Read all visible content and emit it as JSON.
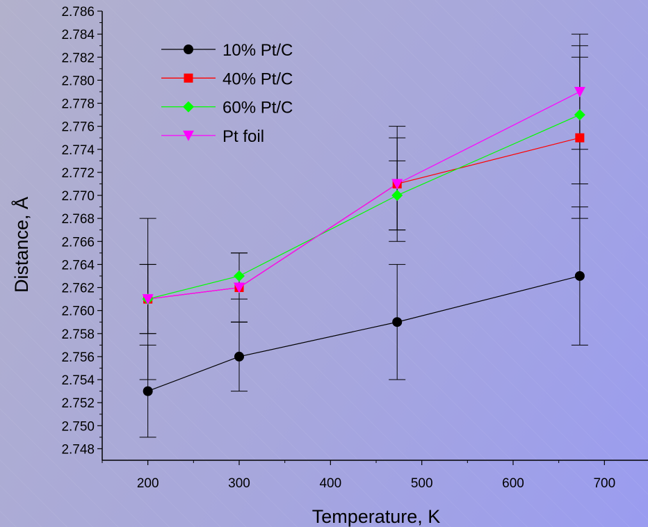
{
  "chart_data": {
    "type": "line",
    "xlabel": "Temperature, K",
    "ylabel": "Distance, Å",
    "xlim": [
      150,
      750
    ],
    "ylim": [
      2.747,
      2.786
    ],
    "x_ticks": [
      200,
      300,
      400,
      500,
      600,
      700
    ],
    "y_ticks": [
      2.748,
      2.75,
      2.752,
      2.754,
      2.756,
      2.758,
      2.76,
      2.762,
      2.764,
      2.766,
      2.768,
      2.77,
      2.772,
      2.774,
      2.776,
      2.778,
      2.78,
      2.782,
      2.784,
      2.786
    ],
    "legend_position": "top-left",
    "grid": false,
    "series": [
      {
        "name": "10% Pt/C",
        "color": "#000000",
        "marker": "circle",
        "x": [
          200,
          300,
          473,
          673
        ],
        "y": [
          2.753,
          2.756,
          2.759,
          2.763
        ],
        "error": [
          0.004,
          0.003,
          0.005,
          0.006
        ]
      },
      {
        "name": "40% Pt/C",
        "color": "#ff0000",
        "marker": "square",
        "x": [
          200,
          300,
          473,
          673
        ],
        "y": [
          2.761,
          2.762,
          2.771,
          2.775
        ],
        "error": [
          0.003,
          0.003,
          0.004,
          0.007
        ]
      },
      {
        "name": "60% Pt/C",
        "color": "#00ff00",
        "marker": "diamond",
        "x": [
          200,
          300,
          473,
          673
        ],
        "y": [
          2.761,
          2.763,
          2.77,
          2.777
        ],
        "error": [
          0.003,
          0.002,
          0.003,
          0.006
        ]
      },
      {
        "name": "Pt foil",
        "color": "#ff00ff",
        "marker": "triangle-down",
        "x": [
          200,
          300,
          473,
          673
        ],
        "y": [
          2.761,
          2.762,
          2.771,
          2.779
        ],
        "error": [
          0.007,
          0.003,
          0.005,
          0.005
        ]
      }
    ]
  }
}
